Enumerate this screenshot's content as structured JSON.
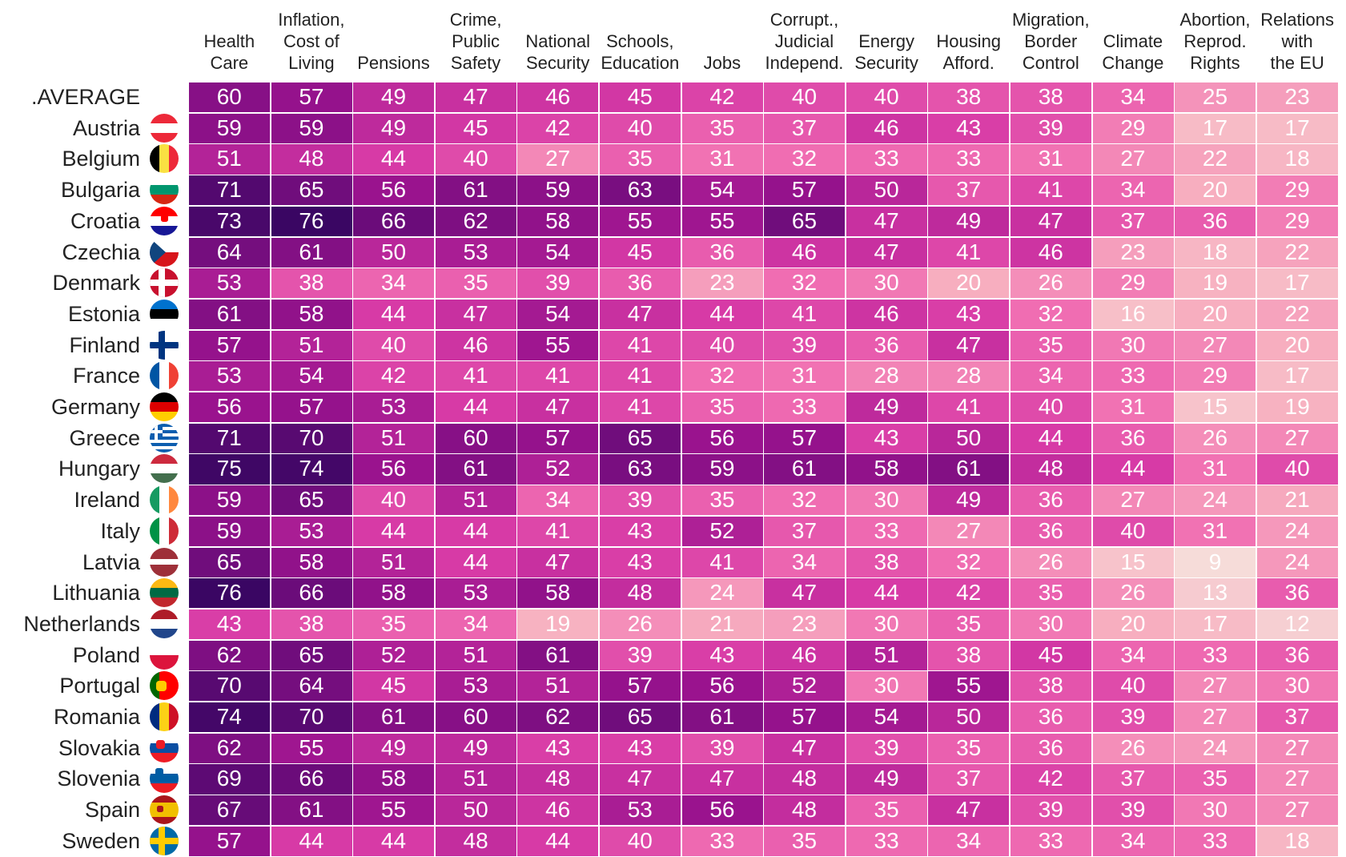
{
  "chart_data": {
    "type": "heatmap",
    "title": "",
    "columns": [
      "Health Care",
      "Inflation, Cost of Living",
      "Pensions",
      "Crime, Public Safety",
      "National Security",
      "Schools, Education",
      "Jobs",
      "Corrupt., Judicial Independ.",
      "Energy Security",
      "Housing Afford.",
      "Migration, Border Control",
      "Climate Change",
      "Abortion, Reprod. Rights",
      "Relations with the EU"
    ],
    "column_header_lines": [
      [
        "Health",
        "Care"
      ],
      [
        "Inflation,",
        "Cost of",
        "Living"
      ],
      [
        "Pensions"
      ],
      [
        "Crime,",
        "Public",
        "Safety"
      ],
      [
        "National",
        "Security"
      ],
      [
        "Schools,",
        "Education"
      ],
      [
        "Jobs"
      ],
      [
        "Corrupt.,",
        "Judicial",
        "Independ."
      ],
      [
        "Energy",
        "Security"
      ],
      [
        "Housing",
        "Afford."
      ],
      [
        "Migration,",
        "Border",
        "Control"
      ],
      [
        "Climate",
        "Change"
      ],
      [
        "Abortion,",
        "Reprod.",
        "Rights"
      ],
      [
        "Relations",
        "with",
        "the EU"
      ]
    ],
    "rows": [
      {
        "name": ".AVERAGE",
        "values": [
          60,
          57,
          49,
          47,
          46,
          45,
          42,
          40,
          40,
          38,
          38,
          34,
          25,
          23
        ]
      },
      {
        "name": "Austria",
        "values": [
          59,
          59,
          49,
          45,
          42,
          40,
          35,
          37,
          46,
          43,
          39,
          29,
          17,
          17
        ]
      },
      {
        "name": "Belgium",
        "values": [
          51,
          48,
          44,
          40,
          27,
          35,
          31,
          32,
          33,
          33,
          31,
          27,
          22,
          18
        ]
      },
      {
        "name": "Bulgaria",
        "values": [
          71,
          65,
          56,
          61,
          59,
          63,
          54,
          57,
          50,
          37,
          41,
          34,
          20,
          29
        ]
      },
      {
        "name": "Croatia",
        "values": [
          73,
          76,
          66,
          62,
          58,
          55,
          55,
          65,
          47,
          49,
          47,
          37,
          36,
          29
        ]
      },
      {
        "name": "Czechia",
        "values": [
          64,
          61,
          50,
          53,
          54,
          45,
          36,
          46,
          47,
          41,
          46,
          23,
          18,
          22
        ]
      },
      {
        "name": "Denmark",
        "values": [
          53,
          38,
          34,
          35,
          39,
          36,
          23,
          32,
          30,
          20,
          26,
          29,
          19,
          17
        ]
      },
      {
        "name": "Estonia",
        "values": [
          61,
          58,
          44,
          47,
          54,
          47,
          44,
          41,
          46,
          43,
          32,
          16,
          20,
          22
        ]
      },
      {
        "name": "Finland",
        "values": [
          57,
          51,
          40,
          46,
          55,
          41,
          40,
          39,
          36,
          47,
          35,
          30,
          27,
          20
        ]
      },
      {
        "name": "France",
        "values": [
          53,
          54,
          42,
          41,
          41,
          41,
          32,
          31,
          28,
          28,
          34,
          33,
          29,
          17
        ]
      },
      {
        "name": "Germany",
        "values": [
          56,
          57,
          53,
          44,
          47,
          41,
          35,
          33,
          49,
          41,
          40,
          31,
          15,
          19
        ]
      },
      {
        "name": "Greece",
        "values": [
          71,
          70,
          51,
          60,
          57,
          65,
          56,
          57,
          43,
          50,
          44,
          36,
          26,
          27
        ]
      },
      {
        "name": "Hungary",
        "values": [
          75,
          74,
          56,
          61,
          52,
          63,
          59,
          61,
          58,
          61,
          48,
          44,
          31,
          40
        ]
      },
      {
        "name": "Ireland",
        "values": [
          59,
          65,
          40,
          51,
          34,
          39,
          35,
          32,
          30,
          49,
          36,
          27,
          24,
          21
        ]
      },
      {
        "name": "Italy",
        "values": [
          59,
          53,
          44,
          44,
          41,
          43,
          52,
          37,
          33,
          27,
          36,
          40,
          31,
          24
        ]
      },
      {
        "name": "Latvia",
        "values": [
          65,
          58,
          51,
          44,
          47,
          43,
          41,
          34,
          38,
          32,
          26,
          15,
          9,
          24
        ]
      },
      {
        "name": "Lithuania",
        "values": [
          76,
          66,
          58,
          53,
          58,
          48,
          24,
          47,
          44,
          42,
          35,
          26,
          13,
          36
        ]
      },
      {
        "name": "Netherlands",
        "values": [
          43,
          38,
          35,
          34,
          19,
          26,
          21,
          23,
          30,
          35,
          30,
          20,
          17,
          12
        ]
      },
      {
        "name": "Poland",
        "values": [
          62,
          65,
          52,
          51,
          61,
          39,
          43,
          46,
          51,
          38,
          45,
          34,
          33,
          36
        ]
      },
      {
        "name": "Portugal",
        "values": [
          70,
          64,
          45,
          53,
          51,
          57,
          56,
          52,
          30,
          55,
          38,
          40,
          27,
          30
        ]
      },
      {
        "name": "Romania",
        "values": [
          74,
          70,
          61,
          60,
          62,
          65,
          61,
          57,
          54,
          50,
          36,
          39,
          27,
          37
        ]
      },
      {
        "name": "Slovakia",
        "values": [
          62,
          55,
          49,
          49,
          43,
          43,
          39,
          47,
          39,
          35,
          36,
          26,
          24,
          27
        ]
      },
      {
        "name": "Slovenia",
        "values": [
          69,
          66,
          58,
          51,
          48,
          47,
          47,
          48,
          49,
          37,
          42,
          37,
          35,
          27
        ]
      },
      {
        "name": "Spain",
        "values": [
          67,
          61,
          55,
          50,
          46,
          53,
          56,
          48,
          35,
          47,
          39,
          39,
          30,
          27
        ]
      },
      {
        "name": "Sweden",
        "values": [
          57,
          44,
          44,
          48,
          44,
          40,
          33,
          35,
          33,
          34,
          33,
          34,
          33,
          18
        ]
      }
    ],
    "flag_icons": [
      "",
      "austria-flag-icon",
      "belgium-flag-icon",
      "bulgaria-flag-icon",
      "croatia-flag-icon",
      "czechia-flag-icon",
      "denmark-flag-icon",
      "estonia-flag-icon",
      "finland-flag-icon",
      "france-flag-icon",
      "germany-flag-icon",
      "greece-flag-icon",
      "hungary-flag-icon",
      "ireland-flag-icon",
      "italy-flag-icon",
      "latvia-flag-icon",
      "lithuania-flag-icon",
      "netherlands-flag-icon",
      "poland-flag-icon",
      "portugal-flag-icon",
      "romania-flag-icon",
      "slovakia-flag-icon",
      "slovenia-flag-icon",
      "spain-flag-icon",
      "sweden-flag-icon"
    ],
    "color_scale": {
      "stops": [
        {
          "value": 9,
          "color": "#f6dcd9"
        },
        {
          "value": 20,
          "color": "#f7aebf"
        },
        {
          "value": 32,
          "color": "#f06db2"
        },
        {
          "value": 44,
          "color": "#d73aa6"
        },
        {
          "value": 56,
          "color": "#9a138e"
        },
        {
          "value": 68,
          "color": "#620b76"
        },
        {
          "value": 76,
          "color": "#3a0663"
        }
      ]
    }
  }
}
